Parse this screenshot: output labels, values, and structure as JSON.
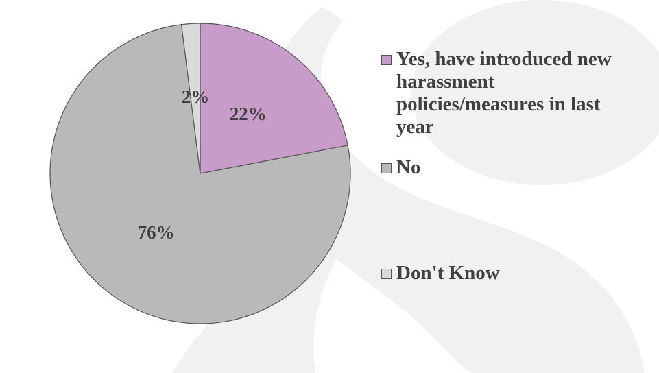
{
  "chart_data": {
    "type": "pie",
    "categories": [
      "Yes, have introduced new harassment policies/measures in last year",
      "No",
      "Don't Know"
    ],
    "values": [
      22,
      76,
      2
    ],
    "value_labels": [
      "22%",
      "76%",
      "2%"
    ],
    "colors": [
      "#c89cc8",
      "#b9b9b9",
      "#dadada"
    ]
  }
}
